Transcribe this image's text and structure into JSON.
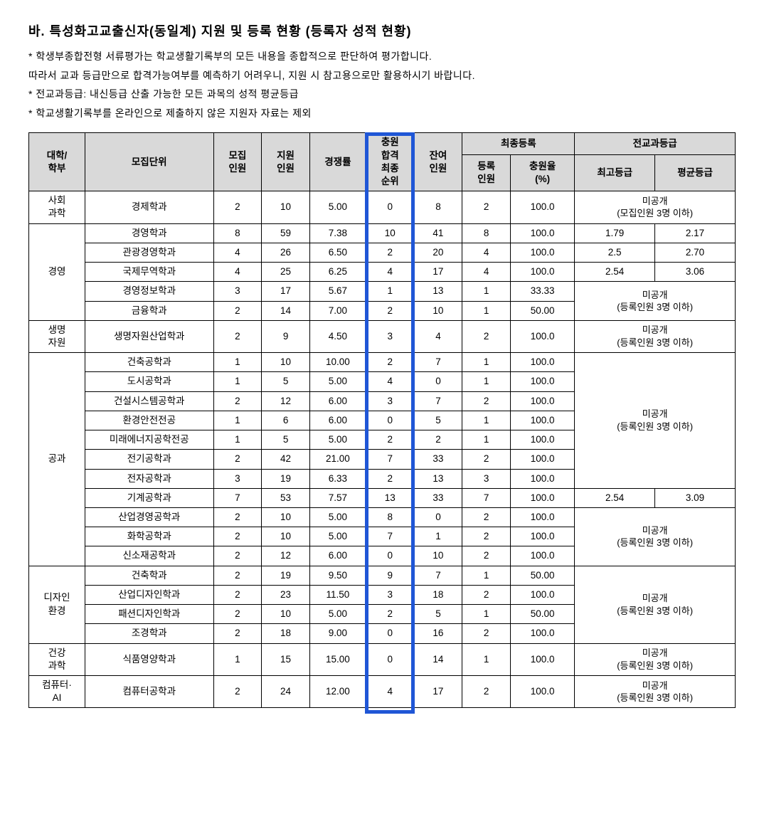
{
  "title": "바. 특성화고교출신자(동일계) 지원 및 등록 현황 (등록자 성적 현황)",
  "notes": [
    "* 학생부종합전형 서류평가는 학교생활기록부의 모든 내용을 종합적으로 판단하여 평가합니다.",
    "  따라서 교과 등급만으로 합격가능여부를 예측하기 어려우니, 지원 시 참고용으로만 활용하시기 바랍니다.",
    "* 전교과등급: 내신등급 산출 가능한 모든 과목의 성적 평균등급",
    "* 학교생활기록부를 온라인으로 제출하지 않은 지원자 자료는 제외"
  ],
  "headers": {
    "dept": "대학/\n학부",
    "major": "모집단위",
    "recruit": "모집\n인원",
    "apply": "지원\n인원",
    "rate": "경쟁률",
    "rank": "충원\n합격\n최종\n순위",
    "remain": "잔여\n인원",
    "final_group": "최종등록",
    "enroll": "등록\n인원",
    "fill": "충원율\n(%)",
    "grade_group": "전교과등급",
    "best": "최고등급",
    "avg": "평균등급"
  },
  "private_label_recruit": "미공개\n(모집인원 3명 이하)",
  "private_label_enroll": "미공개\n(등록인원 3명 이하)",
  "highlight_col_index": 5,
  "groups": [
    {
      "dept": "사회\n과학",
      "rows": [
        {
          "major": "경제학과",
          "recruit": "2",
          "apply": "10",
          "rate": "5.00",
          "rank": "0",
          "remain": "8",
          "enroll": "2",
          "fill": "100.0",
          "best": null,
          "avg": null,
          "priv": "recruit"
        }
      ]
    },
    {
      "dept": "경영",
      "rows": [
        {
          "major": "경영학과",
          "recruit": "8",
          "apply": "59",
          "rate": "7.38",
          "rank": "10",
          "remain": "41",
          "enroll": "8",
          "fill": "100.0",
          "best": "1.79",
          "avg": "2.17"
        },
        {
          "major": "관광경영학과",
          "recruit": "4",
          "apply": "26",
          "rate": "6.50",
          "rank": "2",
          "remain": "20",
          "enroll": "4",
          "fill": "100.0",
          "best": "2.5",
          "avg": "2.70"
        },
        {
          "major": "국제무역학과",
          "recruit": "4",
          "apply": "25",
          "rate": "6.25",
          "rank": "4",
          "remain": "17",
          "enroll": "4",
          "fill": "100.0",
          "best": "2.54",
          "avg": "3.06"
        },
        {
          "major": "경영정보학과",
          "recruit": "3",
          "apply": "17",
          "rate": "5.67",
          "rank": "1",
          "remain": "13",
          "enroll": "1",
          "fill": "33.33",
          "best": null,
          "avg": null,
          "priv": "enroll",
          "priv_span": 2
        },
        {
          "major": "금융학과",
          "recruit": "2",
          "apply": "14",
          "rate": "7.00",
          "rank": "2",
          "remain": "10",
          "enroll": "1",
          "fill": "50.00",
          "best": null,
          "avg": null,
          "priv": "cont"
        }
      ]
    },
    {
      "dept": "생명\n자원",
      "rows": [
        {
          "major": "생명자원산업학과",
          "recruit": "2",
          "apply": "9",
          "rate": "4.50",
          "rank": "3",
          "remain": "4",
          "enroll": "2",
          "fill": "100.0",
          "best": null,
          "avg": null,
          "priv": "enroll"
        }
      ]
    },
    {
      "dept": "공과",
      "rows": [
        {
          "major": "건축공학과",
          "recruit": "1",
          "apply": "10",
          "rate": "10.00",
          "rank": "2",
          "remain": "7",
          "enroll": "1",
          "fill": "100.0",
          "best": null,
          "avg": null,
          "priv": "enroll",
          "priv_span": 7
        },
        {
          "major": "도시공학과",
          "recruit": "1",
          "apply": "5",
          "rate": "5.00",
          "rank": "4",
          "remain": "0",
          "enroll": "1",
          "fill": "100.0",
          "best": null,
          "avg": null,
          "priv": "cont"
        },
        {
          "major": "건설시스템공학과",
          "recruit": "2",
          "apply": "12",
          "rate": "6.00",
          "rank": "3",
          "remain": "7",
          "enroll": "2",
          "fill": "100.0",
          "best": null,
          "avg": null,
          "priv": "cont"
        },
        {
          "major": "환경안전전공",
          "recruit": "1",
          "apply": "6",
          "rate": "6.00",
          "rank": "0",
          "remain": "5",
          "enroll": "1",
          "fill": "100.0",
          "best": null,
          "avg": null,
          "priv": "cont"
        },
        {
          "major": "미래에너지공학전공",
          "recruit": "1",
          "apply": "5",
          "rate": "5.00",
          "rank": "2",
          "remain": "2",
          "enroll": "1",
          "fill": "100.0",
          "best": null,
          "avg": null,
          "priv": "cont"
        },
        {
          "major": "전기공학과",
          "recruit": "2",
          "apply": "42",
          "rate": "21.00",
          "rank": "7",
          "remain": "33",
          "enroll": "2",
          "fill": "100.0",
          "best": null,
          "avg": null,
          "priv": "cont"
        },
        {
          "major": "전자공학과",
          "recruit": "3",
          "apply": "19",
          "rate": "6.33",
          "rank": "2",
          "remain": "13",
          "enroll": "3",
          "fill": "100.0",
          "best": null,
          "avg": null,
          "priv": "cont"
        },
        {
          "major": "기계공학과",
          "recruit": "7",
          "apply": "53",
          "rate": "7.57",
          "rank": "13",
          "remain": "33",
          "enroll": "7",
          "fill": "100.0",
          "best": "2.54",
          "avg": "3.09"
        },
        {
          "major": "산업경영공학과",
          "recruit": "2",
          "apply": "10",
          "rate": "5.00",
          "rank": "8",
          "remain": "0",
          "enroll": "2",
          "fill": "100.0",
          "best": null,
          "avg": null,
          "priv": "enroll",
          "priv_span": 3
        },
        {
          "major": "화학공학과",
          "recruit": "2",
          "apply": "10",
          "rate": "5.00",
          "rank": "7",
          "remain": "1",
          "enroll": "2",
          "fill": "100.0",
          "best": null,
          "avg": null,
          "priv": "cont"
        },
        {
          "major": "신소재공학과",
          "recruit": "2",
          "apply": "12",
          "rate": "6.00",
          "rank": "0",
          "remain": "10",
          "enroll": "2",
          "fill": "100.0",
          "best": null,
          "avg": null,
          "priv": "cont"
        }
      ]
    },
    {
      "dept": "디자인\n환경",
      "rows": [
        {
          "major": "건축학과",
          "recruit": "2",
          "apply": "19",
          "rate": "9.50",
          "rank": "9",
          "remain": "7",
          "enroll": "1",
          "fill": "50.00",
          "best": null,
          "avg": null,
          "priv": "enroll",
          "priv_span": 4
        },
        {
          "major": "산업디자인학과",
          "recruit": "2",
          "apply": "23",
          "rate": "11.50",
          "rank": "3",
          "remain": "18",
          "enroll": "2",
          "fill": "100.0",
          "best": null,
          "avg": null,
          "priv": "cont"
        },
        {
          "major": "패션디자인학과",
          "recruit": "2",
          "apply": "10",
          "rate": "5.00",
          "rank": "2",
          "remain": "5",
          "enroll": "1",
          "fill": "50.00",
          "best": null,
          "avg": null,
          "priv": "cont"
        },
        {
          "major": "조경학과",
          "recruit": "2",
          "apply": "18",
          "rate": "9.00",
          "rank": "0",
          "remain": "16",
          "enroll": "2",
          "fill": "100.0",
          "best": null,
          "avg": null,
          "priv": "cont"
        }
      ]
    },
    {
      "dept": "건강\n과학",
      "rows": [
        {
          "major": "식품영양학과",
          "recruit": "1",
          "apply": "15",
          "rate": "15.00",
          "rank": "0",
          "remain": "14",
          "enroll": "1",
          "fill": "100.0",
          "best": null,
          "avg": null,
          "priv": "enroll"
        }
      ]
    },
    {
      "dept": "컴퓨터·\nAI",
      "rows": [
        {
          "major": "컴퓨터공학과",
          "recruit": "2",
          "apply": "24",
          "rate": "12.00",
          "rank": "4",
          "remain": "17",
          "enroll": "2",
          "fill": "100.0",
          "best": null,
          "avg": null,
          "priv": "enroll"
        }
      ]
    }
  ]
}
